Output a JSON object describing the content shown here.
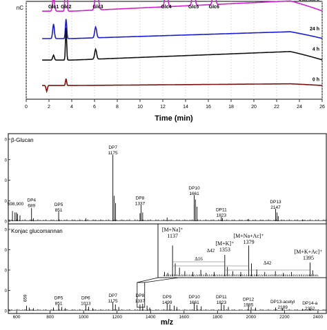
{
  "hplc": {
    "chart_data": {
      "type": "line",
      "ylabel_unit": "nC",
      "xlabel": "Time (min)",
      "xlim": [
        0,
        26
      ],
      "xticks": [
        0,
        2,
        4,
        6,
        8,
        10,
        12,
        14,
        16,
        18,
        20,
        22,
        24,
        26
      ],
      "xtick_labels": [
        "0",
        "2",
        "4",
        "6",
        "8",
        "10",
        "12",
        "14",
        "16",
        "18",
        "20",
        "22",
        "24",
        "26"
      ],
      "peak_labels": [
        {
          "text": "Glc1",
          "x": 2.4
        },
        {
          "text": "Glc2",
          "x": 3.5
        },
        {
          "text": "Glc3",
          "x": 6.3
        },
        {
          "text": "Glc4",
          "x": 12.3
        },
        {
          "text": "Glc5",
          "x": 14.7
        },
        {
          "text": "Glc6",
          "x": 16.5
        }
      ],
      "series": [
        {
          "name": "Standard",
          "color": "#d020d0",
          "baseline": 0.1,
          "drift": 0.12,
          "peaks": [
            [
              2.4,
              0.14,
              0.12
            ],
            [
              3.5,
              0.66,
              0.09
            ],
            [
              6.2,
              0.24,
              0.18
            ],
            [
              12.3,
              0.3,
              0.14
            ],
            [
              14.7,
              0.27,
              0.14
            ],
            [
              16.5,
              0.24,
              0.14
            ]
          ]
        },
        {
          "name": "24 h",
          "color": "#1a1ad6",
          "baseline": 0.38,
          "drift": 0.08,
          "peaks": [
            [
              2.4,
              0.15,
              0.1
            ],
            [
              3.5,
              0.2,
              0.08
            ],
            [
              6.1,
              0.11,
              0.12
            ]
          ]
        },
        {
          "name": "4 h",
          "color": "#111111",
          "baseline": 0.6,
          "drift": 0.1,
          "peaks": [
            [
              2.4,
              0.05,
              0.1
            ],
            [
              3.5,
              0.33,
              0.07
            ],
            [
              6.1,
              0.1,
              0.12
            ]
          ]
        },
        {
          "name": "0 h",
          "color": "#7a1010",
          "baseline": 0.86,
          "drift": 0.02,
          "peaks": [
            [
              1.8,
              -0.06,
              0.08
            ],
            [
              3.5,
              0.07,
              0.07
            ]
          ]
        }
      ]
    }
  },
  "ms": {
    "chart_data": {
      "type": "bar",
      "xlabel": "m/z",
      "xlim": [
        550,
        2450
      ],
      "xticks": [
        600,
        800,
        1000,
        1200,
        1400,
        1600,
        1800,
        2000,
        2200,
        2400
      ],
      "xtick_labels": [
        "600",
        "800",
        "1000",
        "1200",
        "1400",
        "1600",
        "1800",
        "2000",
        "2200",
        "2400"
      ],
      "panels": [
        {
          "title": "β-Glucan",
          "ytick_labels": [
            "0",
            "0",
            "0",
            "0",
            "0"
          ],
          "ylim": [
            0,
            1
          ],
          "peaks": [
            [
              575,
              0.14
            ],
            [
              590,
              0.12
            ],
            [
              599,
              0.12
            ],
            [
              605,
              0.1
            ],
            [
              620,
              0.08
            ],
            [
              689,
              0.18
            ],
            [
              700,
              0.04
            ],
            [
              851,
              0.13
            ],
            [
              1013,
              0.04
            ],
            [
              1175,
              0.92
            ],
            [
              1182,
              0.35
            ],
            [
              1191,
              0.25
            ],
            [
              1337,
              0.11
            ],
            [
              1343,
              0.22
            ],
            [
              1353,
              0.12
            ],
            [
              1499,
              0.05
            ],
            [
              1661,
              0.36
            ],
            [
              1668,
              0.3
            ],
            [
              1677,
              0.2
            ],
            [
              1823,
              0.06
            ],
            [
              1830,
              0.04
            ],
            [
              1985,
              0.03
            ],
            [
              2147,
              0.17
            ],
            [
              2155,
              0.12
            ],
            [
              2163,
              0.07
            ],
            [
              2309,
              0.02
            ]
          ],
          "annotations": [
            {
              "lines": [
                "598,900"
              ],
              "x": 593,
              "y": 0.22
            },
            {
              "lines": [
                "DP4",
                "689"
              ],
              "x": 689,
              "y": 0.27
            },
            {
              "lines": [
                "DP5",
                "851"
              ],
              "x": 851,
              "y": 0.21
            },
            {
              "lines": [
                "DP7",
                "1175"
              ],
              "x": 1175,
              "y": 1.0
            },
            {
              "lines": [
                "DP8",
                "1337"
              ],
              "x": 1337,
              "y": 0.3
            },
            {
              "lines": [
                "DP10",
                "1661"
              ],
              "x": 1661,
              "y": 0.44
            },
            {
              "lines": [
                "DP11",
                "1823"
              ],
              "x": 1823,
              "y": 0.14
            },
            {
              "lines": [
                "DP13",
                "2147"
              ],
              "x": 2147,
              "y": 0.25
            }
          ]
        },
        {
          "title": "Konjac glucomannan",
          "ytick_labels": [
            "0",
            "0",
            "0",
            "0",
            "0"
          ],
          "ylim": [
            0,
            1
          ],
          "peaks": [
            [
              659,
              0.08
            ],
            [
              675,
              0.05
            ],
            [
              700,
              0.04
            ],
            [
              820,
              0.05
            ],
            [
              851,
              0.1
            ],
            [
              870,
              0.06
            ],
            [
              890,
              0.04
            ],
            [
              1013,
              0.1
            ],
            [
              1030,
              0.06
            ],
            [
              1055,
              0.04
            ],
            [
              1175,
              0.14
            ],
            [
              1190,
              0.1
            ],
            [
              1210,
              0.06
            ],
            [
              1337,
              0.1
            ],
            [
              1353,
              0.11
            ],
            [
              1379,
              0.08
            ],
            [
              1395,
              0.05
            ],
            [
              1499,
              0.12
            ],
            [
              1515,
              0.1
            ],
            [
              1541,
              0.08
            ],
            [
              1557,
              0.06
            ],
            [
              1661,
              0.12
            ],
            [
              1677,
              0.09
            ],
            [
              1703,
              0.07
            ],
            [
              1823,
              0.12
            ],
            [
              1839,
              0.09
            ],
            [
              1865,
              0.06
            ],
            [
              1985,
              0.08
            ],
            [
              2001,
              0.06
            ],
            [
              2027,
              0.05
            ],
            [
              2147,
              0.05
            ],
            [
              2189,
              0.04
            ],
            [
              2309,
              0.03
            ],
            [
              2352,
              0.03
            ]
          ],
          "annotations": [
            {
              "lines": [
                "659"
              ],
              "x": 659,
              "y": 0.14,
              "rotate": true
            },
            {
              "lines": [
                "DP5",
                "851"
              ],
              "x": 851,
              "y": 0.18
            },
            {
              "lines": [
                "DP6",
                "1013"
              ],
              "x": 1013,
              "y": 0.18
            },
            {
              "lines": [
                "DP7",
                "1175"
              ],
              "x": 1175,
              "y": 0.22
            },
            {
              "lines": [
                "DP8",
                "1337"
              ],
              "x": 1337,
              "y": 0.22
            },
            {
              "lines": [
                "DP9",
                "1499"
              ],
              "x": 1499,
              "y": 0.2
            },
            {
              "lines": [
                "DP10",
                "1661"
              ],
              "x": 1661,
              "y": 0.2
            },
            {
              "lines": [
                "DP11",
                "1823"
              ],
              "x": 1823,
              "y": 0.2
            },
            {
              "lines": [
                "DP12",
                "1985"
              ],
              "x": 1985,
              "y": 0.16
            },
            {
              "lines": [
                "DP13-acetyl",
                "2189"
              ],
              "x": 2189,
              "y": 0.12
            },
            {
              "lines": [
                "DP14-a",
                "2352"
              ],
              "x": 2352,
              "y": 0.1
            }
          ],
          "inset": {
            "x_range": [
              1120,
              1410
            ],
            "labels": [
              {
                "text": "[M+Na]⁺",
                "sub": "1137",
                "x": 1137
              },
              {
                "text": "[M+K]⁺",
                "sub": "1353",
                "x": 1235
              },
              {
                "text": "[M+Na+Ac]⁺",
                "sub": "1379",
                "x": 1280
              },
              {
                "text": "[M+K+Ac]⁺",
                "sub": "1395",
                "x": 1395
              }
            ],
            "deltas": [
              {
                "text": "Δ16",
                "x1": 1137,
                "x2": 1235
              },
              {
                "text": "Δ42",
                "x1": 1137,
                "x2": 1280
              },
              {
                "text": "Δ42",
                "x1": 1235,
                "x2": 1395
              }
            ],
            "peaks": [
              [
                1122,
                0.1
              ],
              [
                1128,
                0.08
              ],
              [
                1137,
                0.72
              ],
              [
                1142,
                0.3
              ],
              [
                1150,
                0.2
              ],
              [
                1160,
                0.12
              ],
              [
                1175,
                0.1
              ],
              [
                1190,
                0.15
              ],
              [
                1200,
                0.08
              ],
              [
                1215,
                0.1
              ],
              [
                1235,
                0.5
              ],
              [
                1240,
                0.22
              ],
              [
                1250,
                0.12
              ],
              [
                1265,
                0.1
              ],
              [
                1280,
                0.72
              ],
              [
                1285,
                0.3
              ],
              [
                1295,
                0.16
              ],
              [
                1310,
                0.1
              ],
              [
                1330,
                0.12
              ],
              [
                1345,
                0.08
              ],
              [
                1360,
                0.1
              ],
              [
                1395,
                0.32
              ],
              [
                1400,
                0.14
              ]
            ]
          }
        }
      ]
    }
  }
}
